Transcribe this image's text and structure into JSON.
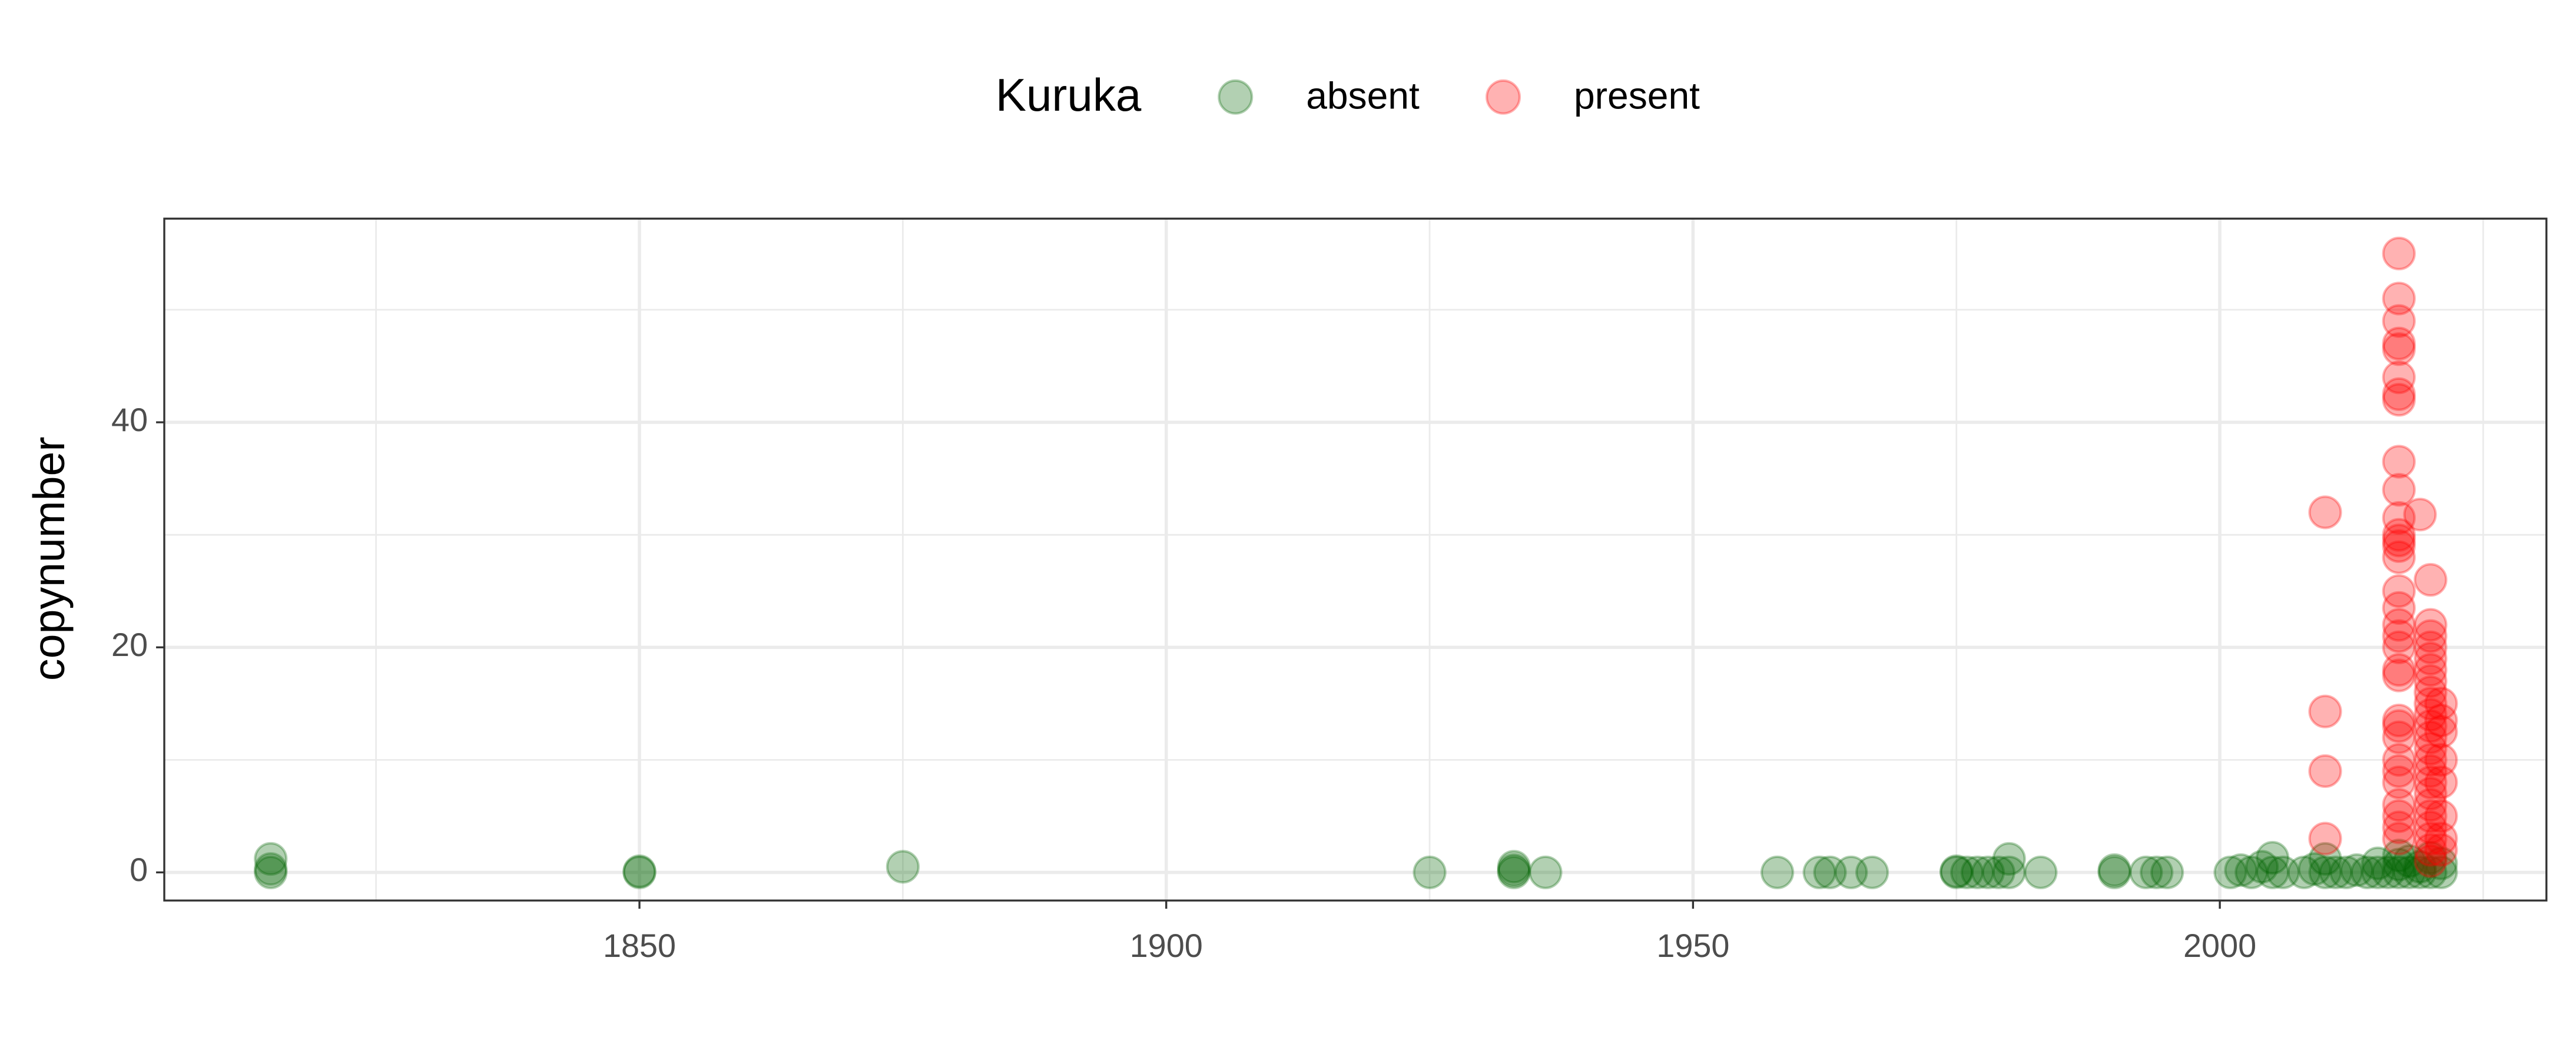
{
  "chart_data": {
    "type": "scatter",
    "y_label": "copynumber",
    "legend_title": "Kuruka",
    "legend_position": "top",
    "grid": true,
    "xlim": [
      1804.9,
      2031.0
    ],
    "xticks": [
      1850,
      1900,
      1950,
      2000
    ],
    "ylim": [
      -2.5,
      58.1
    ],
    "yticks": [
      0,
      20,
      40
    ],
    "series": [
      {
        "name": "absent",
        "color": "#006400",
        "x": [
          1815,
          1815,
          1815,
          1850,
          1850,
          1875,
          1925,
          1933,
          1933,
          1933,
          1936,
          1958,
          1962,
          1963,
          1965,
          1967,
          1975,
          1975,
          1976,
          1977,
          1978,
          1979,
          1980,
          1980,
          1983,
          1990,
          1990,
          1993,
          1994,
          1995,
          2001,
          2002,
          2003,
          2004,
          2005,
          2005,
          2006,
          2008,
          2009,
          2010,
          2010,
          2011,
          2012,
          2013,
          2014,
          2015,
          2015,
          2016,
          2017,
          2017,
          2017,
          2018,
          2018,
          2019,
          2019,
          2020,
          2020,
          2021,
          2021
        ],
        "values": [
          1.2,
          0.3,
          0,
          0,
          0.1,
          0.5,
          0,
          0,
          0.5,
          0.2,
          0,
          0,
          0,
          0,
          0,
          0,
          0,
          0.1,
          0,
          0,
          0,
          0,
          1.2,
          0,
          0,
          0,
          0.2,
          0,
          0,
          0,
          0,
          0.2,
          0,
          0.5,
          1.3,
          0,
          0,
          0,
          0.3,
          1.2,
          0,
          0,
          0,
          0.2,
          0,
          0.8,
          0,
          0,
          0,
          1.5,
          0.7,
          0,
          1.0,
          0,
          0.5,
          0,
          1.3,
          0,
          0.8
        ]
      },
      {
        "name": "present",
        "color": "#ff0000",
        "x": [
          2010,
          2010,
          2010,
          2010,
          2017,
          2017,
          2017,
          2017,
          2017,
          2017,
          2017,
          2017,
          2017,
          2017,
          2017,
          2017,
          2017,
          2017,
          2017,
          2017,
          2017,
          2017,
          2017,
          2017,
          2017,
          2017,
          2017,
          2017,
          2017,
          2017,
          2017,
          2017,
          2017,
          2017,
          2017,
          2017,
          2019,
          2020,
          2020,
          2020,
          2020,
          2020,
          2020,
          2020,
          2020,
          2020,
          2020,
          2020,
          2020,
          2020,
          2020,
          2020,
          2020,
          2020,
          2020,
          2020,
          2020,
          2020,
          2020,
          2020,
          2021,
          2021,
          2021,
          2021,
          2021,
          2021,
          2021,
          2021
        ],
        "values": [
          32,
          14.3,
          9,
          3,
          55,
          51,
          49,
          47,
          46.5,
          44,
          42.5,
          42,
          36.5,
          34,
          31.5,
          30,
          29.5,
          29,
          28,
          25,
          23.5,
          22,
          21,
          20,
          18,
          17.5,
          13.5,
          13,
          12,
          10,
          9,
          8,
          6,
          5,
          4,
          3,
          31.8,
          26,
          22,
          21,
          20,
          19,
          18,
          17,
          16,
          15,
          14,
          13,
          12,
          11,
          10,
          9,
          8,
          7,
          6,
          5,
          4,
          3,
          2,
          1,
          15,
          13.5,
          12.5,
          10,
          8,
          5,
          3,
          2
        ]
      }
    ]
  }
}
